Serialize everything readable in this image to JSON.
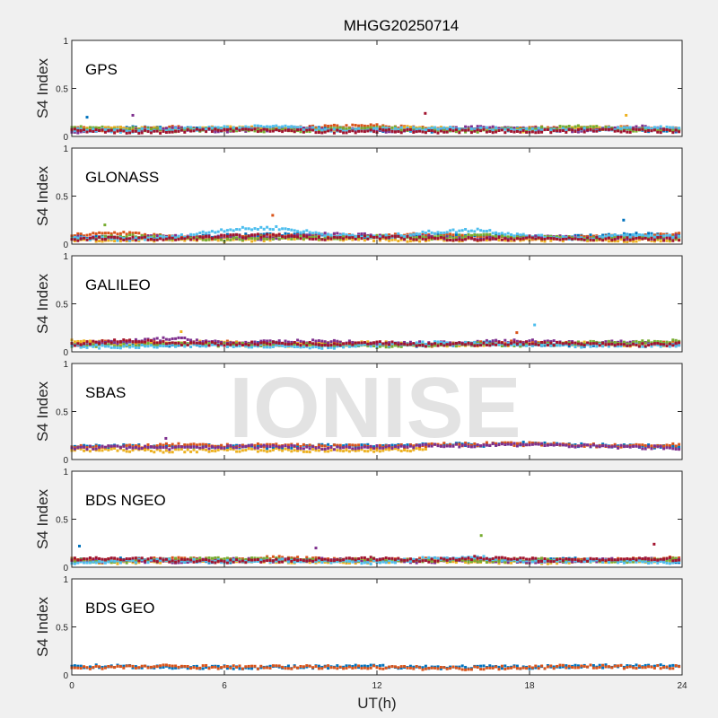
{
  "chart_data": {
    "type": "scatter",
    "title": "MHGG20250714",
    "xlabel": "UT(h)",
    "ylabel": "S4 Index",
    "xlim": [
      0,
      24
    ],
    "ylim": [
      0,
      1
    ],
    "xticks": [
      "0",
      "6",
      "12",
      "18",
      "24"
    ],
    "yticks": [
      "0",
      "0.5",
      "1"
    ],
    "watermark": "IONISE",
    "colors": [
      "#0072BD",
      "#D95319",
      "#EDB120",
      "#7E2F8E",
      "#77AC30",
      "#4DBEEE",
      "#A2142F"
    ],
    "hours": [
      0,
      2,
      4,
      6,
      8,
      10,
      12,
      14,
      16,
      18,
      20,
      22,
      24
    ],
    "panels": [
      {
        "label": "GPS",
        "series": [
          {
            "color": 0,
            "values": [
              0.07,
              0.09,
              0.08,
              0.07,
              0.09,
              0.08,
              0.07,
              0.06,
              0.08,
              0.07,
              0.08,
              0.07,
              0.06
            ]
          },
          {
            "color": 1,
            "values": [
              0.08,
              0.07,
              0.09,
              0.08,
              0.07,
              0.1,
              0.11,
              0.08,
              0.07,
              0.09,
              0.08,
              0.09,
              0.08
            ]
          },
          {
            "color": 2,
            "values": [
              0.06,
              0.1,
              0.07,
              0.09,
              0.08,
              0.06,
              0.08,
              0.1,
              0.07,
              0.06,
              0.09,
              0.08,
              0.07
            ]
          },
          {
            "color": 3,
            "values": [
              0.05,
              0.06,
              0.08,
              0.06,
              0.07,
              0.08,
              0.06,
              0.07,
              0.09,
              0.08,
              0.06,
              0.1,
              0.07
            ]
          },
          {
            "color": 4,
            "values": [
              0.09,
              0.08,
              0.06,
              0.08,
              0.06,
              0.07,
              0.09,
              0.07,
              0.06,
              0.08,
              0.1,
              0.07,
              0.06
            ]
          },
          {
            "color": 5,
            "values": [
              0.07,
              0.06,
              0.07,
              0.09,
              0.1,
              0.07,
              0.07,
              0.08,
              0.08,
              0.07,
              0.07,
              0.08,
              0.09
            ]
          },
          {
            "color": 6,
            "values": [
              0.06,
              0.05,
              0.05,
              0.07,
              0.06,
              0.05,
              0.06,
              0.05,
              0.06,
              0.05,
              0.06,
              0.06,
              0.05
            ]
          }
        ],
        "spikes": [
          [
            0.6,
            0.2
          ],
          [
            2.4,
            0.22
          ],
          [
            13.9,
            0.24
          ],
          [
            21.8,
            0.22
          ]
        ]
      },
      {
        "label": "GLONASS",
        "series": [
          {
            "color": 0,
            "values": [
              0.08,
              0.07,
              0.06,
              0.09,
              0.1,
              0.08,
              0.07,
              0.09,
              0.08,
              0.07,
              0.08,
              0.1,
              0.09
            ]
          },
          {
            "color": 1,
            "values": [
              0.09,
              0.12,
              0.07,
              0.06,
              0.08,
              0.09,
              0.08,
              0.1,
              0.07,
              0.06,
              0.07,
              0.08,
              0.1
            ]
          },
          {
            "color": 2,
            "values": [
              0.05,
              0.04,
              0.05,
              0.04,
              0.05,
              0.06,
              0.05,
              0.04,
              0.05,
              0.04,
              0.05,
              0.04,
              0.05
            ]
          },
          {
            "color": 3,
            "values": [
              0.07,
              0.06,
              0.08,
              0.07,
              0.06,
              0.1,
              0.09,
              0.07,
              0.06,
              0.08,
              0.07,
              0.06,
              0.08
            ]
          },
          {
            "color": 4,
            "values": [
              0.06,
              0.08,
              0.07,
              0.05,
              0.07,
              0.06,
              0.08,
              0.06,
              0.09,
              0.07,
              0.06,
              0.07,
              0.06
            ]
          },
          {
            "color": 5,
            "values": [
              0.06,
              0.05,
              0.07,
              0.15,
              0.17,
              0.1,
              0.07,
              0.12,
              0.15,
              0.08,
              0.06,
              0.09,
              0.08
            ]
          },
          {
            "color": 6,
            "values": [
              0.05,
              0.06,
              0.05,
              0.08,
              0.09,
              0.06,
              0.07,
              0.06,
              0.05,
              0.06,
              0.05,
              0.06,
              0.05
            ]
          }
        ],
        "spikes": [
          [
            7.9,
            0.3
          ],
          [
            1.3,
            0.2
          ],
          [
            21.7,
            0.25
          ]
        ]
      },
      {
        "label": "GALILEO",
        "series": [
          {
            "color": 0,
            "values": [
              0.08,
              0.09,
              0.07,
              0.08,
              0.09,
              0.07,
              0.08,
              0.07,
              0.09,
              0.08,
              0.07,
              0.08,
              0.09
            ]
          },
          {
            "color": 1,
            "values": [
              0.09,
              0.11,
              0.08,
              0.1,
              0.08,
              0.09,
              0.08,
              0.07,
              0.09,
              0.1,
              0.08,
              0.08,
              0.09
            ]
          },
          {
            "color": 2,
            "values": [
              0.12,
              0.08,
              0.1,
              0.09,
              0.07,
              0.08,
              0.09,
              0.08,
              0.07,
              0.08,
              0.09,
              0.07,
              0.08
            ]
          },
          {
            "color": 3,
            "values": [
              0.07,
              0.1,
              0.14,
              0.09,
              0.1,
              0.11,
              0.08,
              0.09,
              0.1,
              0.11,
              0.09,
              0.1,
              0.08
            ]
          },
          {
            "color": 4,
            "values": [
              0.06,
              0.07,
              0.08,
              0.07,
              0.08,
              0.07,
              0.06,
              0.07,
              0.08,
              0.07,
              0.09,
              0.1,
              0.11
            ]
          },
          {
            "color": 5,
            "values": [
              0.06,
              0.05,
              0.06,
              0.07,
              0.06,
              0.05,
              0.07,
              0.09,
              0.08,
              0.07,
              0.06,
              0.07,
              0.06
            ]
          },
          {
            "color": 6,
            "values": [
              0.08,
              0.12,
              0.09,
              0.08,
              0.09,
              0.08,
              0.1,
              0.07,
              0.08,
              0.09,
              0.08,
              0.07,
              0.08
            ]
          }
        ],
        "spikes": [
          [
            4.3,
            0.21
          ],
          [
            18.2,
            0.28
          ],
          [
            17.5,
            0.2
          ]
        ]
      },
      {
        "label": "SBAS",
        "series": [
          {
            "color": 0,
            "values": [
              0.13,
              0.14,
              0.13,
              0.14,
              0.13,
              0.14,
              0.14,
              0.16,
              0.15,
              0.17,
              0.15,
              0.14,
              0.13
            ]
          },
          {
            "color": 1,
            "values": [
              0.14,
              0.13,
              0.15,
              0.14,
              0.15,
              0.14,
              0.13,
              0.15,
              0.16,
              0.16,
              0.15,
              0.14,
              0.15
            ]
          },
          {
            "color": 2,
            "values": [
              0.1,
              0.1,
              0.09,
              0.1,
              0.1,
              0.09,
              0.1,
              0.1,
              null,
              null,
              null,
              null,
              null
            ]
          },
          {
            "color": 3,
            "values": [
              0.12,
              0.13,
              0.12,
              0.13,
              0.14,
              0.12,
              0.13,
              0.14,
              0.15,
              0.16,
              0.14,
              0.13,
              0.12
            ]
          }
        ],
        "spikes": [
          [
            3.7,
            0.22
          ]
        ]
      },
      {
        "label": "BDS NGEO",
        "series": [
          {
            "color": 0,
            "values": [
              0.07,
              0.08,
              0.07,
              0.06,
              0.08,
              0.07,
              0.06,
              0.08,
              0.09,
              0.07,
              0.08,
              0.07,
              0.06
            ]
          },
          {
            "color": 1,
            "values": [
              0.08,
              0.07,
              0.09,
              0.07,
              0.1,
              0.08,
              0.07,
              0.08,
              0.07,
              0.08,
              0.07,
              0.08,
              0.1
            ]
          },
          {
            "color": 2,
            "values": [
              0.06,
              0.05,
              0.06,
              0.07,
              0.06,
              0.05,
              0.06,
              0.07,
              0.06,
              0.05,
              0.06,
              0.07,
              0.06
            ]
          },
          {
            "color": 3,
            "values": [
              0.06,
              0.07,
              0.06,
              0.08,
              0.07,
              0.08,
              0.07,
              0.06,
              0.07,
              0.06,
              0.07,
              0.08,
              0.07
            ]
          },
          {
            "color": 4,
            "values": [
              0.07,
              0.06,
              0.08,
              0.09,
              0.08,
              0.07,
              0.08,
              0.07,
              0.06,
              0.08,
              0.07,
              0.06,
              0.08
            ]
          },
          {
            "color": 5,
            "values": [
              0.05,
              0.06,
              0.07,
              0.06,
              0.07,
              0.06,
              0.05,
              0.09,
              0.1,
              0.06,
              0.07,
              0.06,
              0.05
            ]
          },
          {
            "color": 6,
            "values": [
              0.08,
              0.09,
              0.07,
              0.06,
              0.07,
              0.08,
              0.09,
              0.07,
              0.1,
              0.08,
              0.07,
              0.09,
              0.08
            ]
          }
        ],
        "spikes": [
          [
            16.1,
            0.33
          ],
          [
            0.3,
            0.22
          ],
          [
            9.6,
            0.2
          ],
          [
            22.9,
            0.24
          ]
        ]
      },
      {
        "label": "BDS GEO",
        "series": [
          {
            "color": 0,
            "values": [
              0.09,
              0.09,
              0.08,
              0.08,
              0.08,
              0.08,
              0.09,
              0.08,
              0.08,
              0.08,
              0.09,
              0.09,
              0.09
            ]
          },
          {
            "color": 1,
            "values": [
              0.08,
              0.08,
              0.09,
              0.08,
              0.08,
              0.08,
              0.08,
              0.07,
              0.07,
              0.08,
              0.09,
              0.08,
              0.08
            ]
          }
        ],
        "spikes": []
      }
    ]
  }
}
